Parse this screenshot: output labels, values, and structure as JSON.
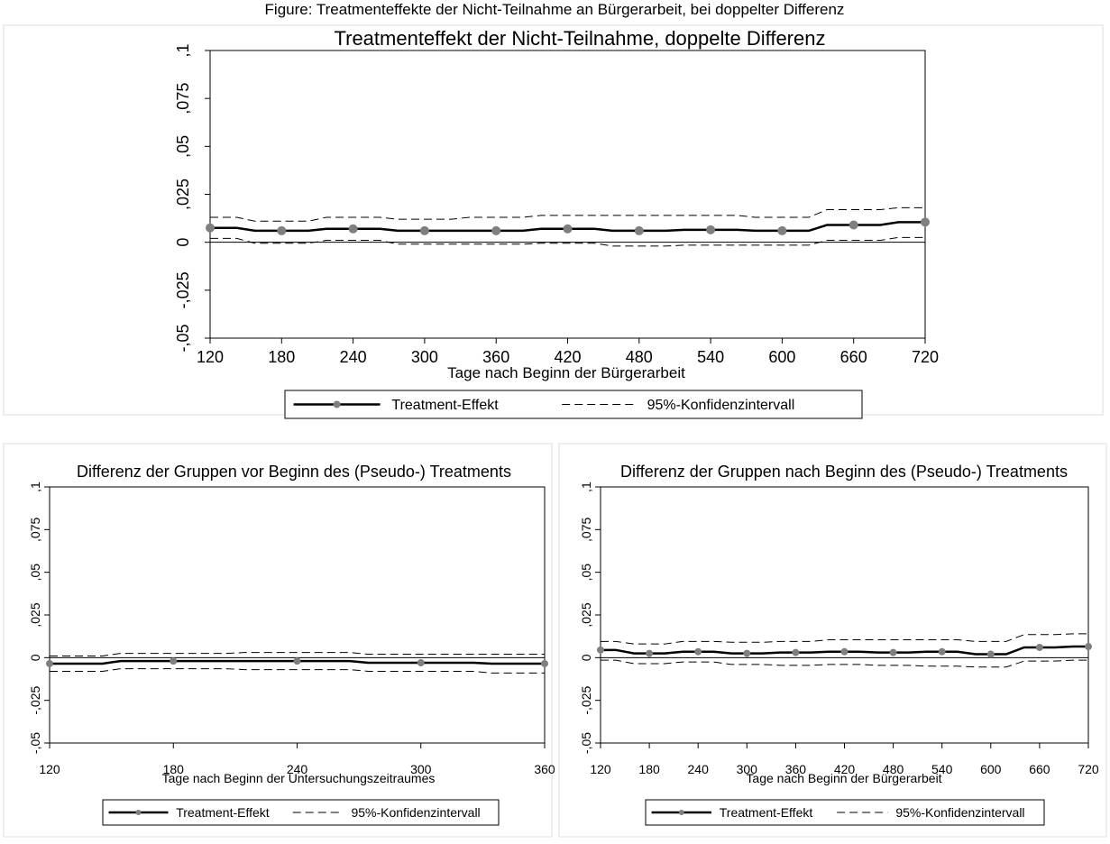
{
  "figure_caption": "Figure: Treatmenteffekte der Nicht-Teilnahme an Bürgerarbeit, bei doppelter Differenz",
  "colors": {
    "line": "#000000",
    "marker": "#7f7f7f",
    "panel_bg": "#ffffff",
    "panel_border": "#dddddd"
  },
  "chart_data": [
    {
      "type": "line",
      "title": "Treatmenteffekt der Nicht-Teilnahme, doppelte Differenz",
      "xlabel": "Tage nach Beginn der Bürgerarbeit",
      "ylabel": "",
      "xticks": [
        120,
        180,
        240,
        300,
        360,
        420,
        480,
        540,
        600,
        660,
        720
      ],
      "yticks": [
        -0.05,
        -0.025,
        0,
        0.025,
        0.05,
        0.075,
        0.1
      ],
      "ytick_labels": [
        "-,05",
        "-,025",
        "0",
        ",025",
        ",05",
        ",075",
        ",1"
      ],
      "xlim": [
        120,
        720
      ],
      "ylim": [
        -0.05,
        0.1
      ],
      "grid": false,
      "legend_position": "bottom",
      "series": [
        {
          "name": "Treatment-Effekt",
          "style": "solid-marker",
          "x": [
            120,
            180,
            240,
            300,
            360,
            420,
            480,
            540,
            600,
            660,
            720
          ],
          "y": [
            0.0075,
            0.006,
            0.007,
            0.006,
            0.006,
            0.007,
            0.006,
            0.0065,
            0.006,
            0.009,
            0.0105
          ]
        },
        {
          "name": "95%-Konfidenzintervall",
          "style": "dashed",
          "x": [
            120,
            180,
            240,
            300,
            360,
            420,
            480,
            540,
            600,
            660,
            720
          ],
          "y": [
            0.013,
            0.011,
            0.013,
            0.012,
            0.013,
            0.014,
            0.014,
            0.014,
            0.013,
            0.017,
            0.018
          ]
        },
        {
          "name": "",
          "style": "dashed",
          "x": [
            120,
            180,
            240,
            300,
            360,
            420,
            480,
            540,
            600,
            660,
            720
          ],
          "y": [
            0.002,
            -0.0005,
            0.001,
            -0.001,
            -0.001,
            -0.0005,
            -0.002,
            -0.0015,
            -0.0015,
            0.001,
            0.0025
          ]
        }
      ]
    },
    {
      "type": "line",
      "title": "Differenz der Gruppen vor Beginn des (Pseudo-) Treatments",
      "xlabel": "Tage nach Beginn der Untersuchungszeitraumes",
      "ylabel": "",
      "xticks": [
        120,
        180,
        240,
        300,
        360
      ],
      "yticks": [
        -0.05,
        -0.025,
        0,
        0.025,
        0.05,
        0.075,
        0.1
      ],
      "ytick_labels": [
        "-,05",
        "-,025",
        "0",
        ",025",
        ",05",
        ",075",
        ",1"
      ],
      "xlim": [
        120,
        360
      ],
      "ylim": [
        -0.05,
        0.1
      ],
      "grid": false,
      "legend_position": "bottom",
      "series": [
        {
          "name": "Treatment-Effekt",
          "style": "solid-marker",
          "x": [
            120,
            180,
            240,
            300,
            360
          ],
          "y": [
            -0.0035,
            -0.002,
            -0.002,
            -0.003,
            -0.0035
          ]
        },
        {
          "name": "95%-Konfidenzintervall",
          "style": "dashed",
          "x": [
            120,
            180,
            240,
            300,
            360
          ],
          "y": [
            0.001,
            0.0025,
            0.003,
            0.002,
            0.002
          ]
        },
        {
          "name": "",
          "style": "dashed",
          "x": [
            120,
            180,
            240,
            300,
            360
          ],
          "y": [
            -0.008,
            -0.0065,
            -0.007,
            -0.008,
            -0.009
          ]
        }
      ]
    },
    {
      "type": "line",
      "title": "Differenz der Gruppen nach Beginn des (Pseudo-) Treatments",
      "xlabel": "Tage nach Beginn der Bürgerarbeit",
      "ylabel": "",
      "xticks": [
        120,
        180,
        240,
        300,
        360,
        420,
        480,
        540,
        600,
        660,
        720
      ],
      "yticks": [
        -0.05,
        -0.025,
        0,
        0.025,
        0.05,
        0.075,
        0.1
      ],
      "ytick_labels": [
        "-,05",
        "-,025",
        "0",
        ",025",
        ",05",
        ",075",
        ",1"
      ],
      "xlim": [
        120,
        720
      ],
      "ylim": [
        -0.05,
        0.1
      ],
      "grid": false,
      "legend_position": "bottom",
      "series": [
        {
          "name": "Treatment-Effekt",
          "style": "solid-marker",
          "x": [
            120,
            180,
            240,
            300,
            360,
            420,
            480,
            540,
            600,
            660,
            720
          ],
          "y": [
            0.0045,
            0.0025,
            0.0035,
            0.0025,
            0.003,
            0.0035,
            0.003,
            0.0035,
            0.002,
            0.006,
            0.0065
          ]
        },
        {
          "name": "95%-Konfidenzintervall",
          "style": "dashed",
          "x": [
            120,
            180,
            240,
            300,
            360,
            420,
            480,
            540,
            600,
            660,
            720
          ],
          "y": [
            0.0095,
            0.008,
            0.0095,
            0.009,
            0.0095,
            0.0105,
            0.0105,
            0.0105,
            0.0095,
            0.0135,
            0.014
          ]
        },
        {
          "name": "",
          "style": "dashed",
          "x": [
            120,
            180,
            240,
            300,
            360,
            420,
            480,
            540,
            600,
            660,
            720
          ],
          "y": [
            -0.0015,
            -0.0035,
            -0.0025,
            -0.004,
            -0.0045,
            -0.004,
            -0.0045,
            -0.005,
            -0.0055,
            -0.002,
            -0.0015
          ]
        }
      ]
    }
  ]
}
